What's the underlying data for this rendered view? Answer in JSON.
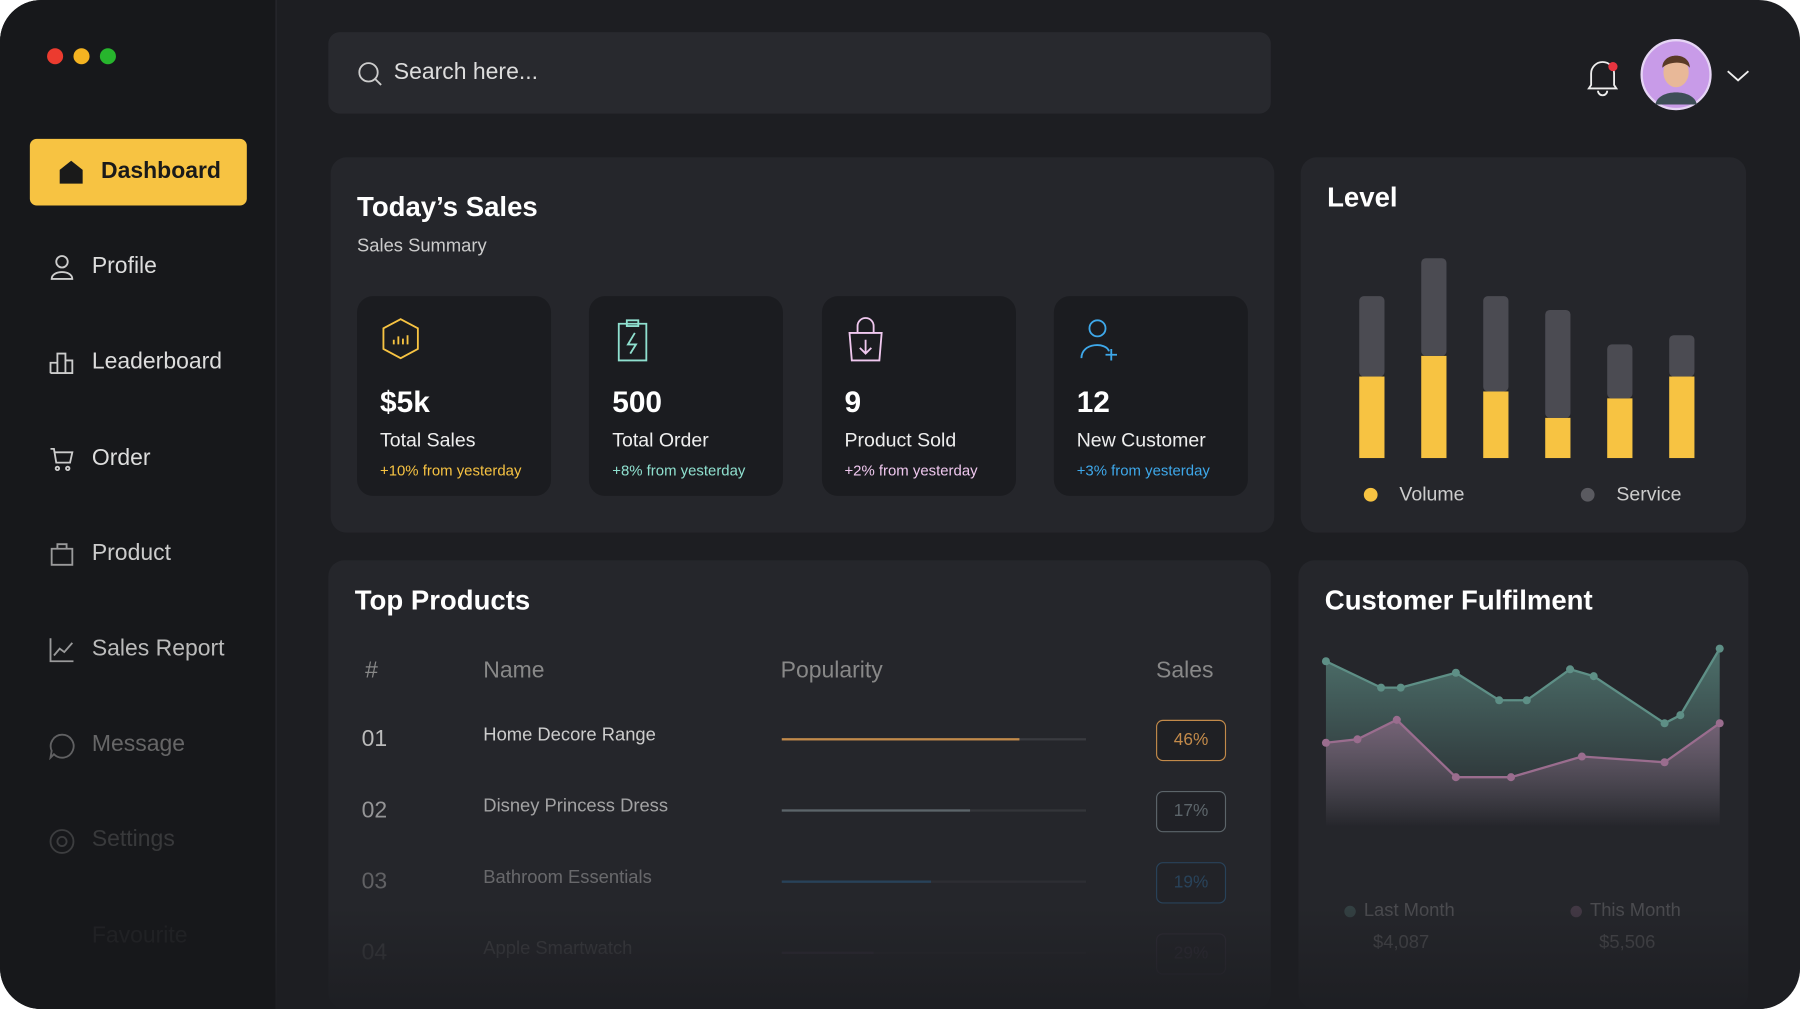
{
  "sidebar": {
    "nav": [
      "Dashboard",
      "Profile",
      "Leaderboard",
      "Order",
      "Product",
      "Sales Report",
      "Message",
      "Settings",
      "Favourite"
    ]
  },
  "header": {
    "search_placeholder": "Search here..."
  },
  "todays_sales": {
    "title": "Today’s Sales",
    "subtitle": "Sales Summary",
    "cards": [
      {
        "value": "$5k",
        "label": "Total Sales",
        "change": "+10% from yesterday",
        "color": "#f7c342"
      },
      {
        "value": "500",
        "label": "Total Order",
        "change": "+8% from yesterday",
        "color": "#8fe0cf"
      },
      {
        "value": "9",
        "label": "Product Sold",
        "change": "+2% from yesterday",
        "color": "#f0c8ef"
      },
      {
        "value": "12",
        "label": "New Customer",
        "change": "+3% from yesterday",
        "color": "#3ea8ea"
      }
    ]
  },
  "level": {
    "title": "Level",
    "chart_data": {
      "type": "bar",
      "stacked": true,
      "categories": [
        null,
        null,
        null,
        null,
        null,
        null
      ],
      "series": [
        {
          "name": "Volume",
          "color": "#f7c342",
          "values": [
            71,
            89,
            58,
            35,
            52,
            71
          ]
        },
        {
          "name": "Service",
          "color": "#4b4b52",
          "values": [
            70,
            85,
            83,
            94,
            47,
            36
          ]
        }
      ]
    }
  },
  "top_products": {
    "title": "Top Products",
    "columns": [
      "#",
      "Name",
      "Popularity",
      "Sales"
    ],
    "rows": [
      {
        "rank": "01",
        "name": "Home Decore Range",
        "popularity": 78,
        "sales": "46%",
        "color": "#c28a4a"
      },
      {
        "rank": "02",
        "name": "Disney Princess Dress",
        "popularity": 62,
        "sales": "17%",
        "color": "#6f7a80"
      },
      {
        "rank": "03",
        "name": "Bathroom Essentials",
        "popularity": 49,
        "sales": "19%",
        "color": "#2d6ea0"
      },
      {
        "rank": "04",
        "name": "Apple Smartwatch",
        "popularity": 30,
        "sales": "29%",
        "color": "#6a4f78"
      }
    ]
  },
  "customer_fulfilment": {
    "title": "Customer Fulfilment",
    "chart_data": {
      "type": "area",
      "series": [
        {
          "name": "Last Month",
          "color": "#5e8f86",
          "total": "$4,087",
          "x": [
            0,
            14,
            19,
            33,
            44,
            51,
            62,
            68,
            86,
            90,
            100
          ],
          "values": [
            144,
            121,
            121,
            134,
            110,
            110,
            137,
            131,
            90,
            97,
            155
          ]
        },
        {
          "name": "This Month",
          "color": "#9a6d8e",
          "total": "$5,506",
          "x": [
            0,
            8,
            18,
            33,
            47,
            65,
            86,
            100
          ],
          "values": [
            73,
            76,
            93,
            43,
            43,
            61,
            56,
            90
          ]
        }
      ]
    }
  }
}
